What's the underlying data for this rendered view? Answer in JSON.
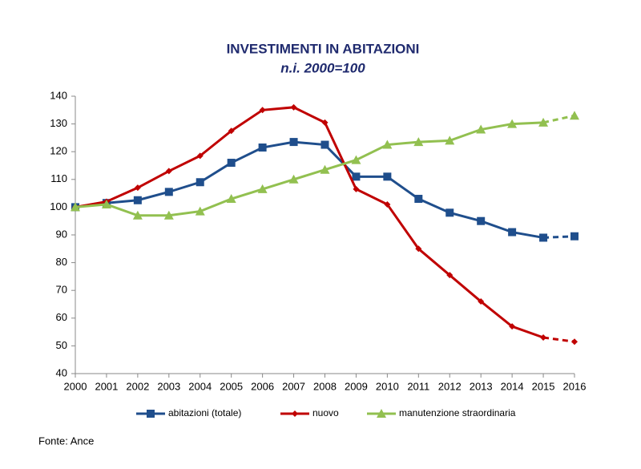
{
  "chart_data": {
    "type": "line",
    "title": "INVESTIMENTI IN ABITAZIONI",
    "subtitle": "n.i. 2000=100",
    "categories": [
      "2000",
      "2001",
      "2002",
      "2003",
      "2004",
      "2005",
      "2006",
      "2007",
      "2008",
      "2009",
      "2010",
      "2011",
      "2012",
      "2013",
      "2014",
      "2015",
      "2016"
    ],
    "dashed_from": "2015",
    "series": [
      {
        "name": "abitazioni (totale)",
        "color": "#1f4e8c",
        "marker": "square",
        "values": [
          100,
          101.5,
          102.5,
          105.5,
          109,
          116,
          121.5,
          123.5,
          122.5,
          111,
          111,
          103,
          98,
          95,
          91,
          89,
          89.5
        ]
      },
      {
        "name": "nuovo",
        "color": "#c00000",
        "marker": "diamond",
        "values": [
          100,
          102,
          107,
          113,
          118.5,
          127.5,
          135,
          136,
          130.5,
          106.5,
          101,
          85,
          75.5,
          66,
          57,
          53,
          51.5
        ]
      },
      {
        "name": "manutenzione straordinaria",
        "color": "#92c050",
        "marker": "triangle",
        "values": [
          100,
          101,
          97,
          97,
          98.5,
          103,
          106.5,
          110,
          113.5,
          117,
          122.5,
          123.5,
          124,
          128,
          130,
          130.5,
          133
        ]
      }
    ],
    "ylim": [
      40,
      140
    ],
    "yticks": [
      40,
      50,
      60,
      70,
      80,
      90,
      100,
      110,
      120,
      130,
      140
    ],
    "grid": false,
    "legend": "bottom",
    "source": "Fonte: Ance"
  }
}
